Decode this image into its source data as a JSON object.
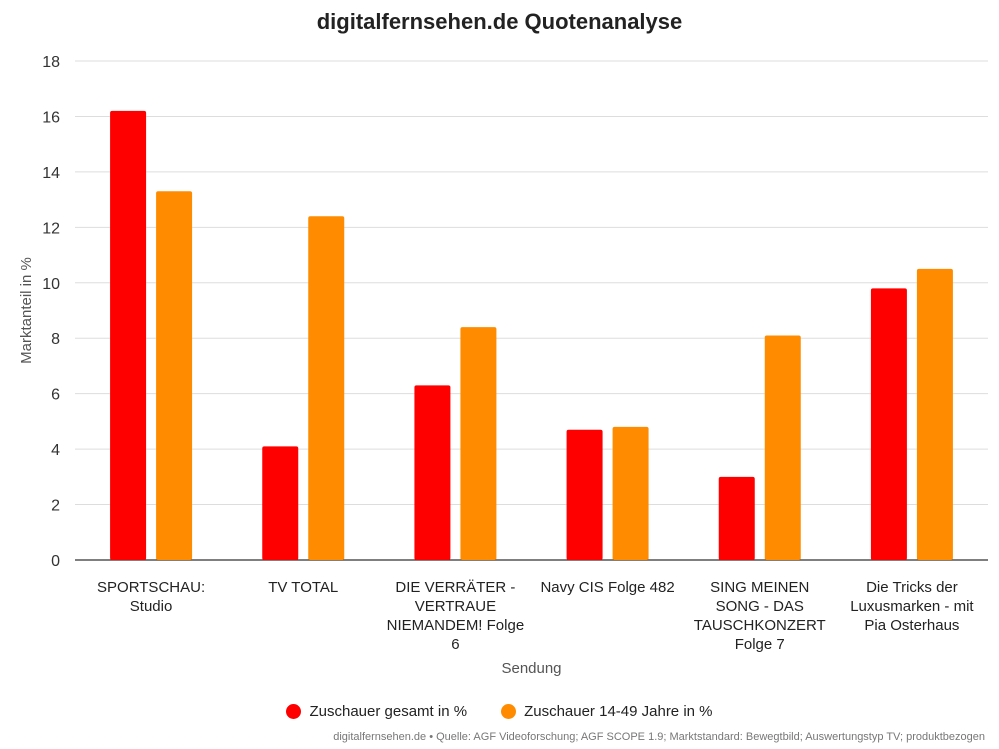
{
  "title": "digitalfernsehen.de Quotenanalyse",
  "source": "digitalfernsehen.de • Quelle: AGF Videoforschung; AGF SCOPE 1.9; Marktstandard: Bewegtbild; Auswertungstyp TV; produktbezogen",
  "chart_data": {
    "type": "bar",
    "title": "digitalfernsehen.de Quotenanalyse",
    "xlabel": "Sendung",
    "ylabel": "Marktanteil in %",
    "ylim": [
      0,
      18
    ],
    "yticks": [
      0,
      2,
      4,
      6,
      8,
      10,
      12,
      14,
      16,
      18
    ],
    "grid": true,
    "legend_position": "bottom",
    "categories": [
      [
        "SPORTSCHAU:",
        "Studio"
      ],
      [
        "TV TOTAL"
      ],
      [
        "DIE VERRÄTER -",
        "VERTRAUE",
        "NIEMANDEM! Folge",
        "6"
      ],
      [
        "Navy CIS Folge 482"
      ],
      [
        "SING MEINEN",
        "SONG - DAS",
        "TAUSCHKONZERT",
        "Folge 7"
      ],
      [
        "Die Tricks der",
        "Luxusmarken - mit",
        "Pia Osterhaus"
      ]
    ],
    "series": [
      {
        "name": "Zuschauer gesamt in %",
        "color": "#ff0000",
        "values": [
          16.2,
          4.1,
          6.3,
          4.7,
          3.0,
          9.8
        ]
      },
      {
        "name": "Zuschauer 14-49 Jahre in %",
        "color": "#ff8c00",
        "values": [
          13.3,
          12.4,
          8.4,
          4.8,
          8.1,
          10.5
        ]
      }
    ]
  }
}
